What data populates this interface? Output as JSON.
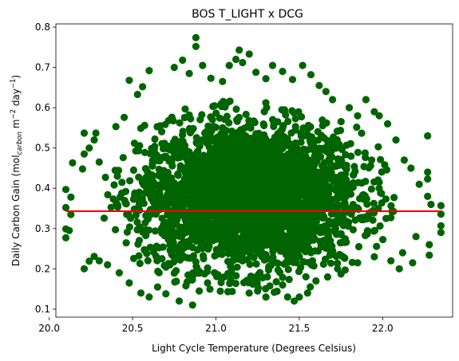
{
  "chart_data": {
    "type": "scatter",
    "title": "BOS T_LIGHT x DCG",
    "xlabel": "Light Cycle Temperature (Degrees Celsius)",
    "ylabel": {
      "prefix": "Daily Carbon Gain (mol",
      "subscript": "carbon",
      "middle": " m",
      "sup1": "−2",
      "middle2": " day",
      "sup2": "−1",
      "suffix": ")"
    },
    "xlim": [
      20.04,
      22.42
    ],
    "ylim": [
      0.08,
      0.808
    ],
    "xticks": [
      20.0,
      20.5,
      21.0,
      21.5,
      22.0
    ],
    "xtick_labels": [
      "20.0",
      "20.5",
      "21.0",
      "21.5",
      "22.0"
    ],
    "yticks": [
      0.1,
      0.2,
      0.3,
      0.4,
      0.5,
      0.6,
      0.7,
      0.8
    ],
    "ytick_labels": [
      "0.1",
      "0.2",
      "0.3",
      "0.4",
      "0.5",
      "0.6",
      "0.7",
      "0.8"
    ],
    "marker_color": "#006400",
    "fit_color": "#ff0000",
    "fit_line": {
      "x": [
        20.1,
        22.35
      ],
      "y": [
        0.343,
        0.343
      ]
    },
    "dense_cloud": {
      "x_center": 21.2,
      "x_spread": 0.33,
      "y_center": 0.38,
      "y_spread": 0.09
    },
    "points": [
      [
        20.1,
        0.277
      ],
      [
        20.1,
        0.299
      ],
      [
        20.12,
        0.295
      ],
      [
        20.1,
        0.352
      ],
      [
        20.1,
        0.397
      ],
      [
        20.13,
        0.378
      ],
      [
        20.13,
        0.335
      ],
      [
        20.14,
        0.463
      ],
      [
        20.21,
        0.537
      ],
      [
        20.21,
        0.485
      ],
      [
        20.2,
        0.448
      ],
      [
        20.24,
        0.5
      ],
      [
        20.27,
        0.52
      ],
      [
        20.28,
        0.537
      ],
      [
        20.3,
        0.465
      ],
      [
        20.21,
        0.2
      ],
      [
        20.24,
        0.219
      ],
      [
        20.27,
        0.231
      ],
      [
        20.3,
        0.22
      ],
      [
        20.35,
        0.21
      ],
      [
        20.4,
        0.553
      ],
      [
        20.45,
        0.576
      ],
      [
        20.48,
        0.668
      ],
      [
        20.53,
        0.633
      ],
      [
        20.56,
        0.652
      ],
      [
        20.6,
        0.692
      ],
      [
        20.42,
        0.19
      ],
      [
        20.48,
        0.165
      ],
      [
        20.55,
        0.14
      ],
      [
        20.6,
        0.13
      ],
      [
        20.65,
        0.155
      ],
      [
        20.7,
        0.138
      ],
      [
        20.78,
        0.12
      ],
      [
        20.82,
        0.158
      ],
      [
        20.86,
        0.11
      ],
      [
        20.9,
        0.145
      ],
      [
        20.95,
        0.165
      ],
      [
        20.75,
        0.7
      ],
      [
        20.8,
        0.718
      ],
      [
        20.84,
        0.685
      ],
      [
        20.88,
        0.774
      ],
      [
        20.88,
        0.752
      ],
      [
        20.92,
        0.705
      ],
      [
        20.97,
        0.673
      ],
      [
        21.04,
        0.665
      ],
      [
        21.08,
        0.705
      ],
      [
        21.12,
        0.72
      ],
      [
        21.14,
        0.743
      ],
      [
        21.16,
        0.712
      ],
      [
        21.2,
        0.733
      ],
      [
        21.24,
        0.688
      ],
      [
        21.3,
        0.672
      ],
      [
        21.34,
        0.705
      ],
      [
        21.4,
        0.69
      ],
      [
        21.46,
        0.67
      ],
      [
        21.52,
        0.705
      ],
      [
        21.57,
        0.682
      ],
      [
        21.62,
        0.655
      ],
      [
        21.66,
        0.64
      ],
      [
        21.7,
        0.62
      ],
      [
        21.2,
        0.14
      ],
      [
        21.25,
        0.145
      ],
      [
        21.3,
        0.13
      ],
      [
        21.35,
        0.142
      ],
      [
        21.4,
        0.16
      ],
      [
        21.43,
        0.13
      ],
      [
        21.47,
        0.12
      ],
      [
        21.5,
        0.13
      ],
      [
        21.55,
        0.14
      ],
      [
        21.6,
        0.17
      ],
      [
        21.67,
        0.18
      ],
      [
        21.73,
        0.2
      ],
      [
        21.8,
        0.6
      ],
      [
        21.85,
        0.58
      ],
      [
        21.9,
        0.62
      ],
      [
        21.95,
        0.59
      ],
      [
        21.98,
        0.58
      ],
      [
        22.03,
        0.56
      ],
      [
        22.08,
        0.52
      ],
      [
        22.13,
        0.47
      ],
      [
        22.17,
        0.45
      ],
      [
        22.22,
        0.41
      ],
      [
        22.27,
        0.38
      ],
      [
        22.29,
        0.36
      ],
      [
        22.27,
        0.53
      ],
      [
        22.27,
        0.44
      ],
      [
        22.27,
        0.423
      ],
      [
        22.28,
        0.26
      ],
      [
        22.28,
        0.234
      ],
      [
        22.35,
        0.357
      ],
      [
        22.35,
        0.336
      ],
      [
        22.35,
        0.307
      ],
      [
        22.35,
        0.29
      ],
      [
        22.1,
        0.2
      ],
      [
        22.18,
        0.215
      ],
      [
        22.05,
        0.22
      ],
      [
        21.95,
        0.23
      ],
      [
        21.85,
        0.215
      ],
      [
        22.12,
        0.24
      ],
      [
        22.2,
        0.28
      ]
    ]
  }
}
